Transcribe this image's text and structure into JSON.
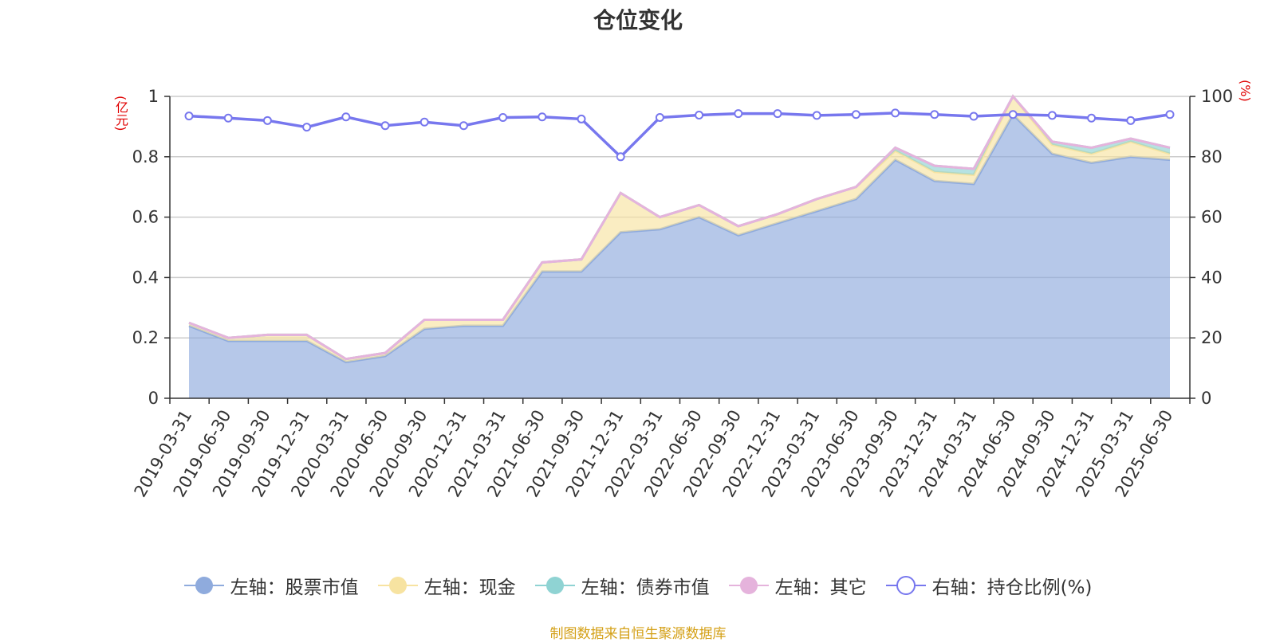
{
  "chart_data": {
    "type": "area",
    "title": "仓位变化",
    "left_unit": "(亿元)",
    "right_unit": "(%)",
    "categories": [
      "2019-03-31",
      "2019-06-30",
      "2019-09-30",
      "2019-12-31",
      "2020-03-31",
      "2020-06-30",
      "2020-09-30",
      "2020-12-31",
      "2021-03-31",
      "2021-06-30",
      "2021-09-30",
      "2021-12-31",
      "2022-03-31",
      "2022-06-30",
      "2022-09-30",
      "2022-12-31",
      "2023-03-31",
      "2023-06-30",
      "2023-09-30",
      "2023-12-31",
      "2024-03-31",
      "2024-06-30",
      "2024-09-30",
      "2024-12-31",
      "2025-03-31",
      "2025-06-30"
    ],
    "left_axis": {
      "min": 0,
      "max": 1,
      "ticks": [
        "0",
        "0.2",
        "0.4",
        "0.6",
        "0.8",
        "1"
      ]
    },
    "right_axis": {
      "min": 0,
      "max": 100,
      "ticks": [
        "0",
        "20",
        "40",
        "60",
        "80",
        "100"
      ]
    },
    "grid": true,
    "legend_position": "bottom",
    "series": [
      {
        "name": "左轴：股票市值",
        "axis": "left",
        "stack": true,
        "color": "#8fabdd",
        "values": [
          0.24,
          0.19,
          0.19,
          0.19,
          0.12,
          0.14,
          0.23,
          0.24,
          0.24,
          0.42,
          0.42,
          0.55,
          0.56,
          0.6,
          0.54,
          0.58,
          0.62,
          0.66,
          0.79,
          0.72,
          0.71,
          0.94,
          0.81,
          0.78,
          0.8,
          0.79
        ]
      },
      {
        "name": "左轴：现金",
        "axis": "left",
        "stack": true,
        "color": "#f7e3a1",
        "values": [
          0.01,
          0.01,
          0.02,
          0.02,
          0.01,
          0.01,
          0.03,
          0.02,
          0.02,
          0.03,
          0.04,
          0.13,
          0.04,
          0.04,
          0.03,
          0.03,
          0.04,
          0.04,
          0.03,
          0.03,
          0.03,
          0.06,
          0.03,
          0.03,
          0.05,
          0.02
        ]
      },
      {
        "name": "左轴：债券市值",
        "axis": "left",
        "stack": true,
        "color": "#8fd3d3",
        "values": [
          0,
          0,
          0,
          0,
          0,
          0,
          0,
          0,
          0,
          0,
          0,
          0,
          0,
          0,
          0,
          0,
          0,
          0,
          0.01,
          0.02,
          0.02,
          0,
          0.01,
          0.02,
          0.01,
          0.02
        ]
      },
      {
        "name": "左轴：其它",
        "axis": "left",
        "stack": true,
        "color": "#e5b3dc",
        "values": [
          0,
          0,
          0,
          0,
          0,
          0,
          0,
          0,
          0,
          0,
          0,
          0,
          0,
          0,
          0,
          0,
          0,
          0,
          0,
          0,
          0,
          0,
          0,
          0,
          0,
          0
        ]
      },
      {
        "name": "右轴：持仓比例(%)",
        "axis": "right",
        "stack": false,
        "color": "#7777ee",
        "values": [
          93.5,
          92.8,
          92,
          89.8,
          93.2,
          90.3,
          91.5,
          90.3,
          93,
          93.2,
          92.5,
          80,
          93,
          93.8,
          94.3,
          94.3,
          93.7,
          94,
          94.5,
          94,
          93.4,
          94,
          93.7,
          92.8,
          92,
          94
        ]
      }
    ]
  },
  "source_note": "制图数据来自恒生聚源数据库"
}
